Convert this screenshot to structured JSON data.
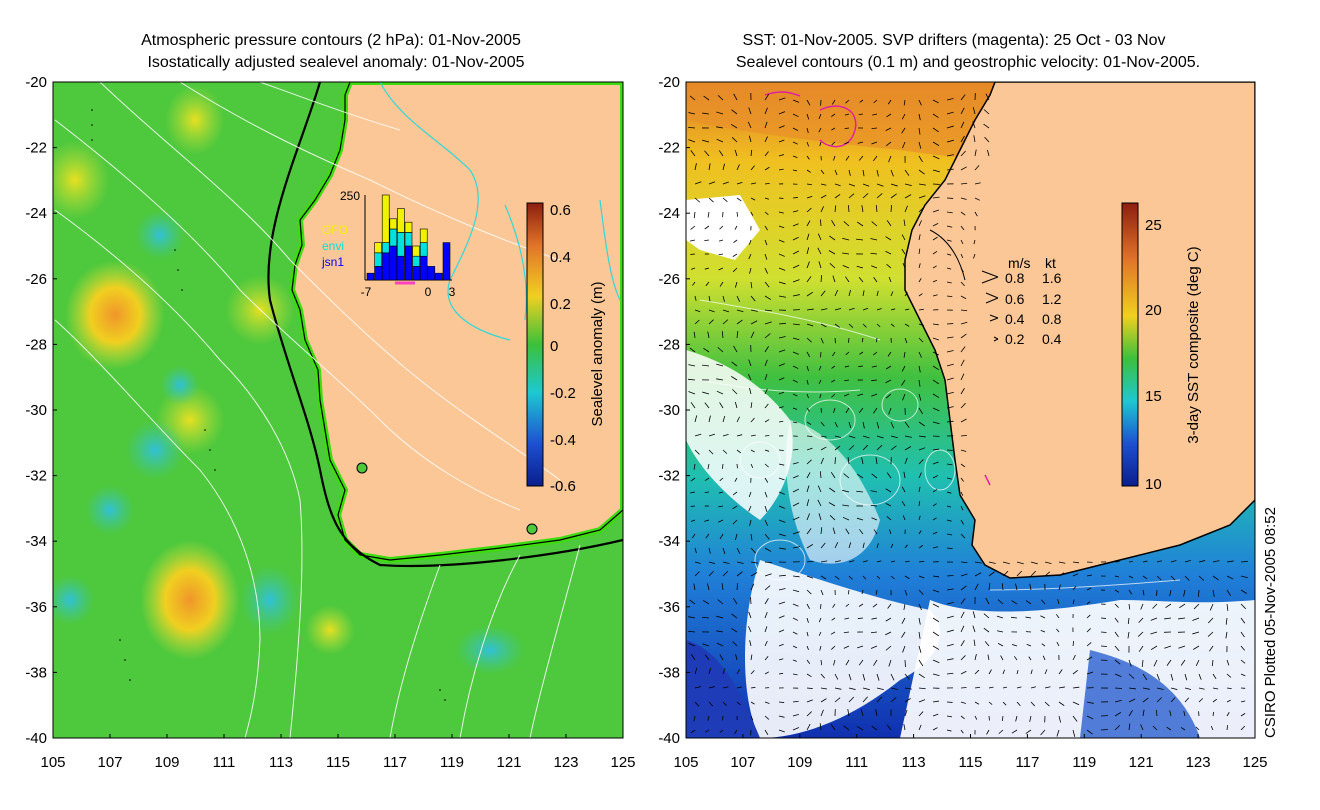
{
  "left_map": {
    "title_line1": "Atmospheric pressure contours (2 hPa): 01-Nov-2005",
    "title_line2": "Isostatically adjusted sealevel anomaly: 01-Nov-2005",
    "colorbar_label": "Sealevel anomaly (m)",
    "colorbar_ticks": [
      "0.6",
      "0.4",
      "0.2",
      "0",
      "-0.2",
      "-0.4",
      "-0.6"
    ],
    "inset": {
      "ymax_label": "250",
      "legend": [
        {
          "name": "GFO",
          "color": "#f2f200"
        },
        {
          "name": "envi",
          "color": "#00e0e0"
        },
        {
          "name": "jsn1",
          "color": "#0000ff"
        }
      ],
      "x_ticks": [
        "-7",
        "0",
        "3"
      ],
      "bars": [
        {
          "day": -7,
          "jsn1": 20,
          "envi": 0,
          "gfo": 0
        },
        {
          "day": -6,
          "jsn1": 40,
          "envi": 40,
          "gfo": 30
        },
        {
          "day": -5,
          "jsn1": 80,
          "envi": 30,
          "gfo": 140
        },
        {
          "day": -4,
          "jsn1": 100,
          "envi": 50,
          "gfo": 30
        },
        {
          "day": -3,
          "jsn1": 70,
          "envi": 70,
          "gfo": 70
        },
        {
          "day": -2,
          "jsn1": 100,
          "envi": 40,
          "gfo": 30
        },
        {
          "day": -1,
          "jsn1": 40,
          "envi": 30,
          "gfo": 30
        },
        {
          "day": 0,
          "jsn1": 70,
          "envi": 40,
          "gfo": 40
        },
        {
          "day": 1,
          "jsn1": 40,
          "envi": 0,
          "gfo": 0
        },
        {
          "day": 2,
          "jsn1": 20,
          "envi": 0,
          "gfo": 0
        },
        {
          "day": 3,
          "jsn1": 110,
          "envi": 0,
          "gfo": 0
        }
      ]
    }
  },
  "right_map": {
    "title_line1": "SST: 01-Nov-2005. SVP drifters (magenta): 25 Oct - 03 Nov",
    "title_line2": "Sealevel contours (0.1 m) and geostrophic velocity: 01-Nov-2005.",
    "colorbar_label": "3-day SST composite (deg C)",
    "colorbar_ticks": [
      "25",
      "20",
      "15",
      "10"
    ],
    "velocity_legend": {
      "header_ms": "m/s",
      "header_kt": "kt",
      "rows": [
        {
          "ms": "0.8",
          "kt": "1.6"
        },
        {
          "ms": "0.6",
          "kt": "1.2"
        },
        {
          "ms": "0.4",
          "kt": "0.8"
        },
        {
          "ms": "0.2",
          "kt": "0.4"
        }
      ]
    }
  },
  "axes": {
    "y_ticks": [
      "-20",
      "-22",
      "-24",
      "-26",
      "-28",
      "-30",
      "-32",
      "-34",
      "-36",
      "-38",
      "-40"
    ],
    "x_ticks": [
      "105",
      "107",
      "109",
      "111",
      "113",
      "115",
      "117",
      "119",
      "121",
      "123",
      "125"
    ]
  },
  "footer_stamp": "CSIRO Plotted 05-Nov-2005 08:52",
  "colors": {
    "land": "#fbc796",
    "ocean_green": "#4ec83c",
    "anomaly_yellow": "#d4e63a",
    "anomaly_orange": "#f5a623",
    "anomaly_cyan": "#33c8c8",
    "sst_orange": "#e2852a",
    "sst_yellow": "#f0d020",
    "sst_blue": "#1e4bc8",
    "drifter": "#e020a0"
  }
}
